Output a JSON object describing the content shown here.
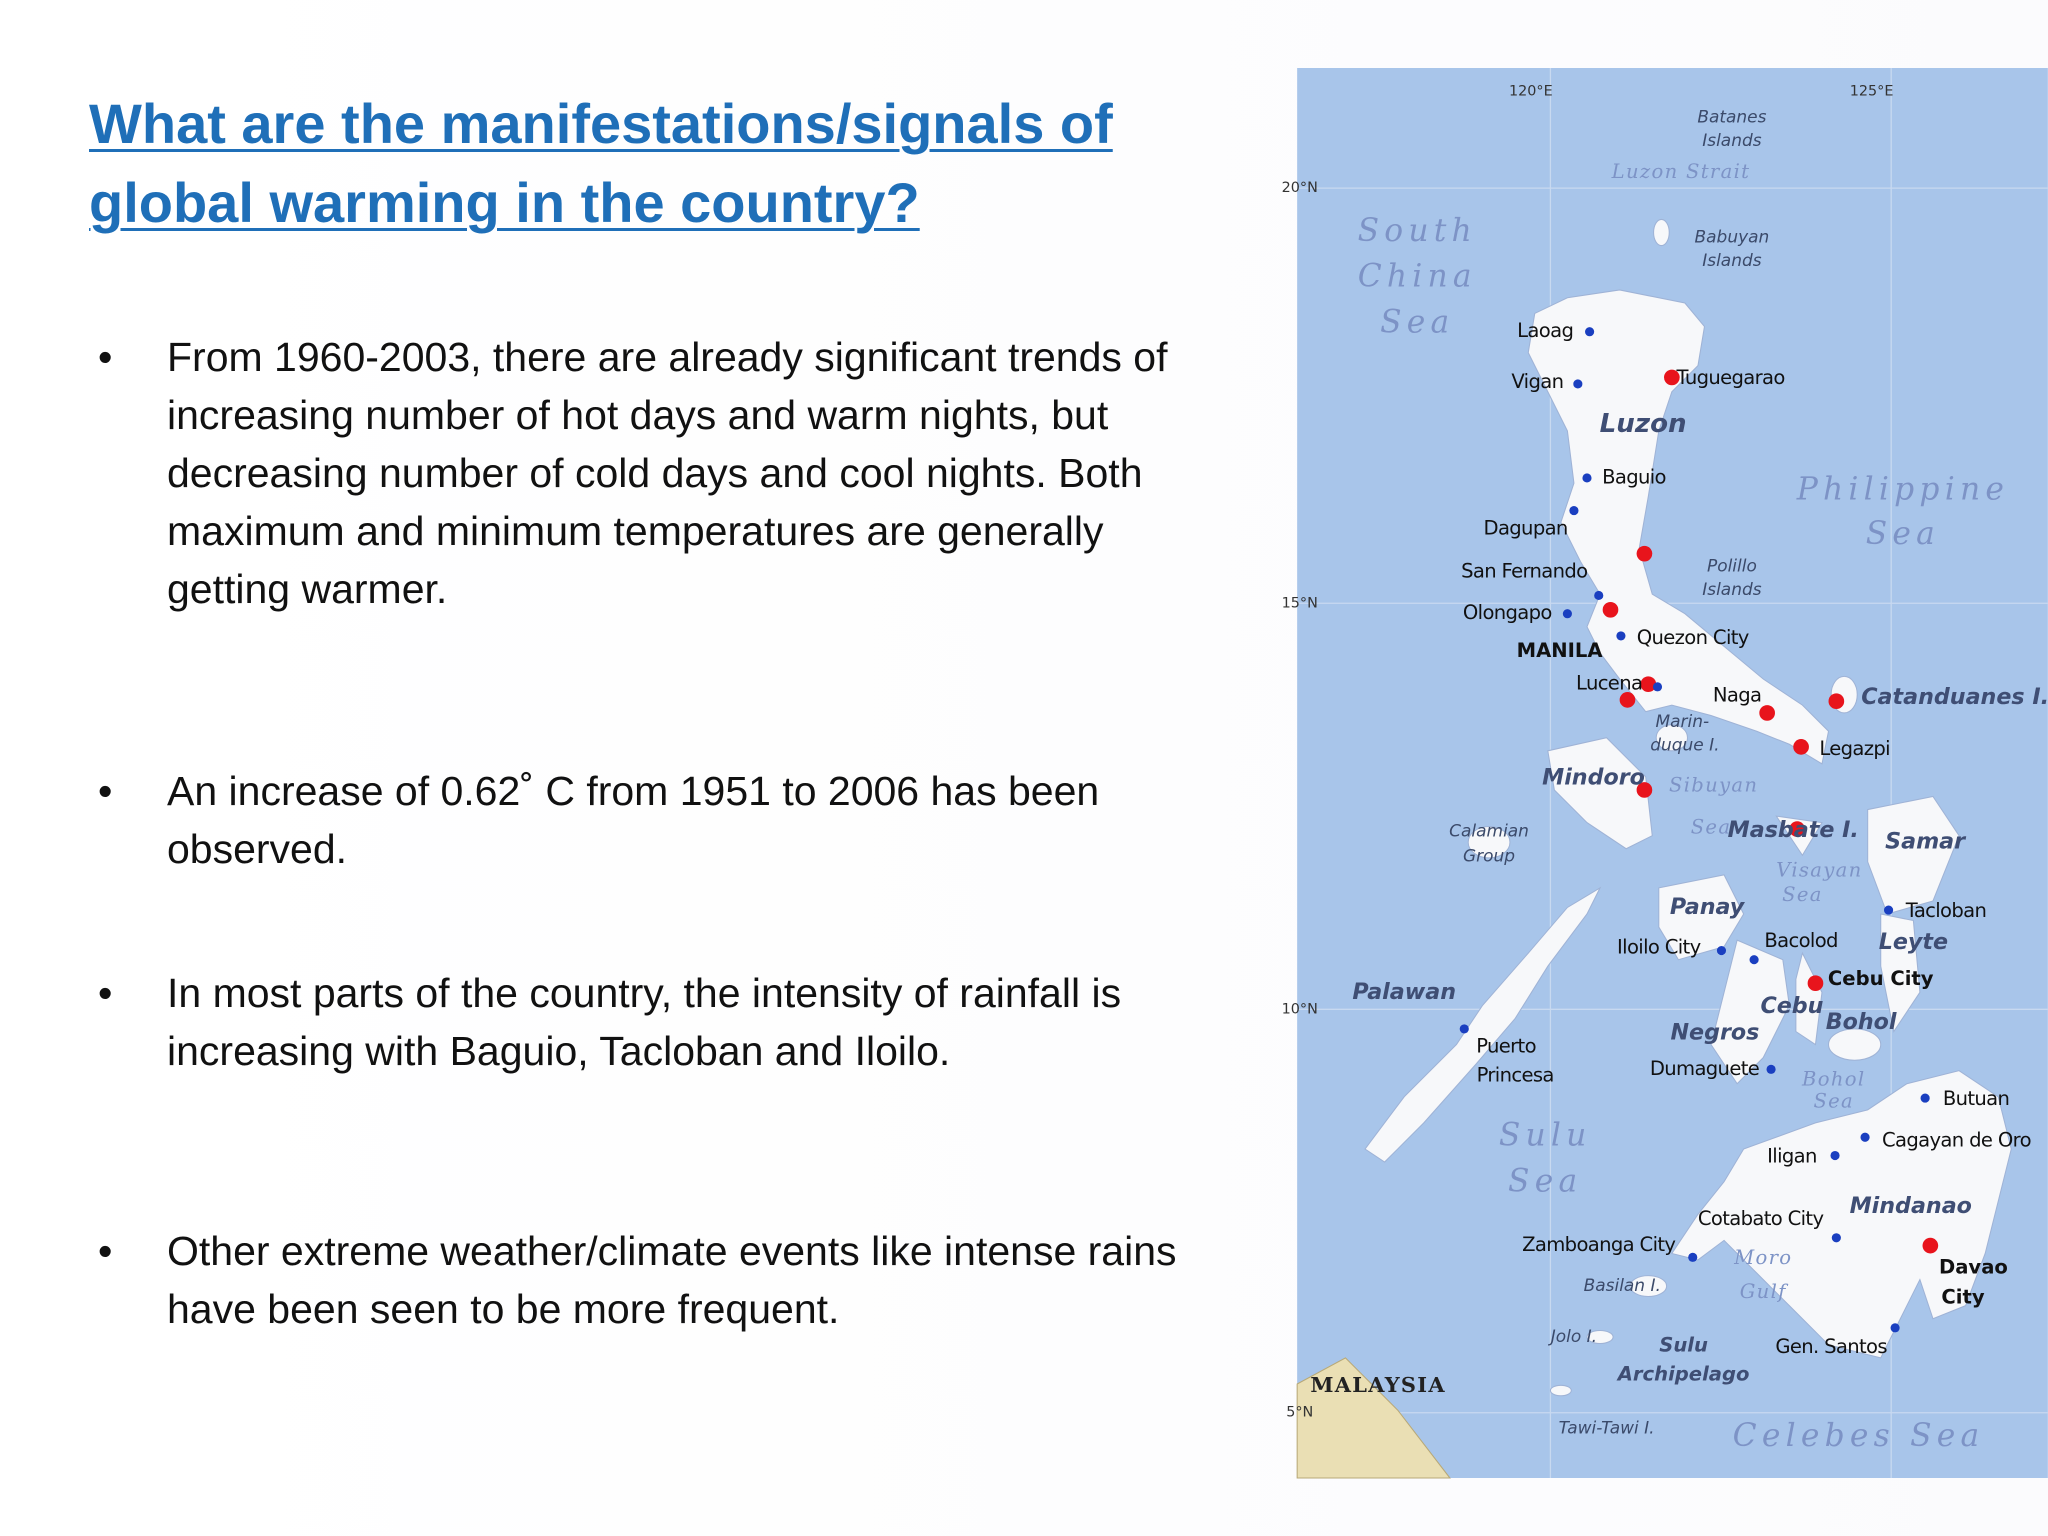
{
  "title": "What are the manifestations/signals of global warming in the country?",
  "bullets": [
    "From 1960-2003, there are already significant trends of increasing number of hot days and warm nights, but decreasing number of cold days and cool nights. Both maximum and minimum temperatures are generally getting warmer.",
    "An increase of 0.62˚ C from 1951 to 2006 has been observed.",
    "In most parts of the country, the intensity of rainfall is increasing with Baguio, Tacloban and Iloilo.",
    "Other extreme weather/climate events like intense rains have been seen to be more frequent."
  ],
  "map": {
    "labels": [
      "120°E",
      "125°E",
      "20°N",
      "15°N",
      "10°N",
      "5°N",
      "Batanes",
      "Islands",
      "Luzon Strait",
      "South",
      "China",
      "Sea",
      "Babuyan",
      "Islands",
      "Laoag",
      "Vigan",
      "Tuguegarao",
      "Luzon",
      "Baguio",
      "Philippine",
      "Sea",
      "Dagupan",
      "San Fernando",
      "Polillo",
      "Islands",
      "Olongapo",
      "MANILA",
      "Quezon City",
      "Lucena",
      "Naga",
      "Catanduanes I.",
      "Marin-",
      "duque I.",
      "Legazpi",
      "Mindoro",
      "Sibuyan",
      "Sea",
      "Masbate I.",
      "Samar",
      "Calamian",
      "Group",
      "Visayan",
      "Sea",
      "Panay",
      "Tacloban",
      "Iloilo City",
      "Bacolod",
      "Leyte",
      "Cebu City",
      "Palawan",
      "Cebu",
      "Bohol",
      "Negros",
      "Puerto",
      "Princesa",
      "Dumaguete",
      "Bohol",
      "Sea",
      "Butuan",
      "Sulu",
      "Sea",
      "Cagayan de Oro",
      "Iligan",
      "Mindanao",
      "Cotabato City",
      "Zamboanga City",
      "Moro",
      "Gulf",
      "Davao",
      "City",
      "Basilan I.",
      "Jolo I.",
      "Sulu",
      "Archipelago",
      "Gen. Santos",
      "MALAYSIA",
      "Tawi-Tawi I.",
      "Celebes Sea"
    ]
  }
}
